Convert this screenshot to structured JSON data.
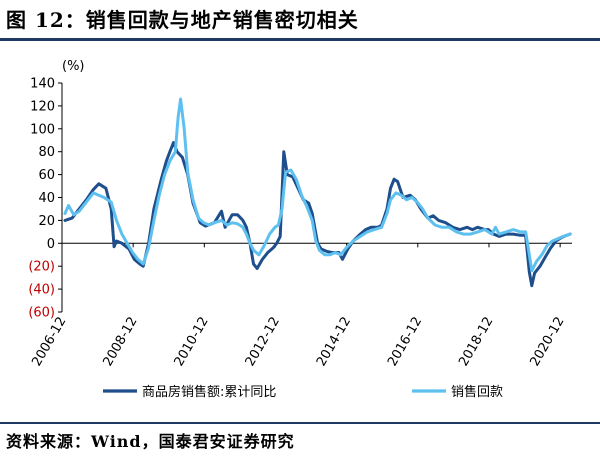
{
  "figure_title": "图 12：销售回款与地产销售密切相关",
  "source_text": "资料来源：Wind，国泰君安证券研究",
  "chart_data": {
    "type": "line",
    "y_unit_label": "(%)",
    "ylim": [
      -60,
      140
    ],
    "y_ticks": [
      {
        "value": 140,
        "label": "140"
      },
      {
        "value": 120,
        "label": "120"
      },
      {
        "value": 100,
        "label": "100"
      },
      {
        "value": 80,
        "label": "80"
      },
      {
        "value": 60,
        "label": "60"
      },
      {
        "value": 40,
        "label": "40"
      },
      {
        "value": 20,
        "label": "20"
      },
      {
        "value": 0,
        "label": "0"
      },
      {
        "value": -20,
        "label": "(20)"
      },
      {
        "value": -40,
        "label": "(40)"
      },
      {
        "value": -60,
        "label": "(60)"
      }
    ],
    "x_tick_labels": [
      "2006-12",
      "2008-12",
      "2010-12",
      "2012-12",
      "2014-12",
      "2016-12",
      "2018-12",
      "2020-12"
    ],
    "xlim": [
      2006.917,
      2021.25
    ],
    "legend_position": "bottom",
    "series": [
      {
        "name": "商品房销售额:累计同比",
        "color": "#1f4e8c",
        "points": [
          [
            2007.0,
            20
          ],
          [
            2007.2,
            22
          ],
          [
            2007.4,
            30
          ],
          [
            2007.6,
            38
          ],
          [
            2007.8,
            47
          ],
          [
            2007.95,
            52
          ],
          [
            2008.15,
            48
          ],
          [
            2008.3,
            30
          ],
          [
            2008.38,
            -3
          ],
          [
            2008.45,
            2
          ],
          [
            2008.6,
            0
          ],
          [
            2008.8,
            -5
          ],
          [
            2008.95,
            -14
          ],
          [
            2009.1,
            -18
          ],
          [
            2009.2,
            -20
          ],
          [
            2009.35,
            0
          ],
          [
            2009.5,
            30
          ],
          [
            2009.7,
            55
          ],
          [
            2009.85,
            72
          ],
          [
            2009.95,
            80
          ],
          [
            2010.05,
            88
          ],
          [
            2010.15,
            80
          ],
          [
            2010.3,
            75
          ],
          [
            2010.45,
            60
          ],
          [
            2010.6,
            35
          ],
          [
            2010.8,
            18
          ],
          [
            2010.95,
            15
          ],
          [
            2011.2,
            18
          ],
          [
            2011.4,
            28
          ],
          [
            2011.5,
            14
          ],
          [
            2011.7,
            25
          ],
          [
            2011.85,
            25
          ],
          [
            2012.0,
            20
          ],
          [
            2012.1,
            14
          ],
          [
            2012.2,
            0
          ],
          [
            2012.3,
            -18
          ],
          [
            2012.4,
            -22
          ],
          [
            2012.55,
            -14
          ],
          [
            2012.7,
            -8
          ],
          [
            2012.85,
            -4
          ],
          [
            2012.95,
            0
          ],
          [
            2013.05,
            6
          ],
          [
            2013.15,
            80
          ],
          [
            2013.25,
            60
          ],
          [
            2013.4,
            58
          ],
          [
            2013.55,
            48
          ],
          [
            2013.7,
            38
          ],
          [
            2013.85,
            35
          ],
          [
            2013.95,
            26
          ],
          [
            2014.1,
            0
          ],
          [
            2014.2,
            -5
          ],
          [
            2014.35,
            -7
          ],
          [
            2014.5,
            -8
          ],
          [
            2014.7,
            -8
          ],
          [
            2014.8,
            -14
          ],
          [
            2014.95,
            -5
          ],
          [
            2015.1,
            2
          ],
          [
            2015.3,
            8
          ],
          [
            2015.45,
            12
          ],
          [
            2015.6,
            14
          ],
          [
            2015.8,
            14
          ],
          [
            2015.9,
            16
          ],
          [
            2016.05,
            30
          ],
          [
            2016.15,
            48
          ],
          [
            2016.25,
            56
          ],
          [
            2016.35,
            54
          ],
          [
            2016.5,
            40
          ],
          [
            2016.7,
            42
          ],
          [
            2016.85,
            38
          ],
          [
            2017.0,
            30
          ],
          [
            2017.2,
            22
          ],
          [
            2017.35,
            24
          ],
          [
            2017.5,
            20
          ],
          [
            2017.7,
            18
          ],
          [
            2017.9,
            14
          ],
          [
            2018.1,
            12
          ],
          [
            2018.3,
            14
          ],
          [
            2018.45,
            12
          ],
          [
            2018.6,
            14
          ],
          [
            2018.8,
            12
          ],
          [
            2018.9,
            12
          ],
          [
            2019.05,
            8
          ],
          [
            2019.2,
            6
          ],
          [
            2019.4,
            8
          ],
          [
            2019.6,
            8
          ],
          [
            2019.8,
            7
          ],
          [
            2019.9,
            7
          ],
          [
            2019.95,
            6
          ],
          [
            2020.05,
            -25
          ],
          [
            2020.12,
            -37
          ],
          [
            2020.2,
            -26
          ],
          [
            2020.35,
            -20
          ],
          [
            2020.5,
            -12
          ],
          [
            2020.65,
            -4
          ],
          [
            2020.8,
            2
          ],
          [
            2020.95,
            5
          ],
          [
            2021.1,
            7
          ],
          [
            2021.2,
            8
          ]
        ]
      },
      {
        "name": "销售回款",
        "color": "#5ec0ef",
        "points": [
          [
            2007.0,
            26
          ],
          [
            2007.1,
            33
          ],
          [
            2007.25,
            25
          ],
          [
            2007.4,
            28
          ],
          [
            2007.6,
            36
          ],
          [
            2007.8,
            44
          ],
          [
            2007.95,
            42
          ],
          [
            2008.1,
            40
          ],
          [
            2008.3,
            36
          ],
          [
            2008.45,
            20
          ],
          [
            2008.6,
            8
          ],
          [
            2008.75,
            0
          ],
          [
            2008.9,
            -8
          ],
          [
            2009.05,
            -14
          ],
          [
            2009.2,
            -18
          ],
          [
            2009.35,
            -4
          ],
          [
            2009.5,
            20
          ],
          [
            2009.65,
            42
          ],
          [
            2009.8,
            60
          ],
          [
            2009.95,
            72
          ],
          [
            2010.1,
            80
          ],
          [
            2010.18,
            110
          ],
          [
            2010.25,
            126
          ],
          [
            2010.35,
            100
          ],
          [
            2010.45,
            62
          ],
          [
            2010.6,
            38
          ],
          [
            2010.75,
            22
          ],
          [
            2010.9,
            18
          ],
          [
            2011.05,
            16
          ],
          [
            2011.2,
            18
          ],
          [
            2011.4,
            20
          ],
          [
            2011.55,
            16
          ],
          [
            2011.7,
            18
          ],
          [
            2011.85,
            17
          ],
          [
            2012.0,
            14
          ],
          [
            2012.1,
            8
          ],
          [
            2012.2,
            0
          ],
          [
            2012.3,
            -6
          ],
          [
            2012.45,
            -10
          ],
          [
            2012.6,
            -2
          ],
          [
            2012.75,
            8
          ],
          [
            2012.9,
            14
          ],
          [
            2013.0,
            16
          ],
          [
            2013.1,
            30
          ],
          [
            2013.2,
            62
          ],
          [
            2013.35,
            64
          ],
          [
            2013.5,
            56
          ],
          [
            2013.65,
            42
          ],
          [
            2013.8,
            32
          ],
          [
            2013.95,
            20
          ],
          [
            2014.05,
            2
          ],
          [
            2014.15,
            -6
          ],
          [
            2014.3,
            -10
          ],
          [
            2014.45,
            -10
          ],
          [
            2014.6,
            -8
          ],
          [
            2014.75,
            -10
          ],
          [
            2014.9,
            -4
          ],
          [
            2015.1,
            2
          ],
          [
            2015.3,
            6
          ],
          [
            2015.5,
            10
          ],
          [
            2015.7,
            12
          ],
          [
            2015.9,
            14
          ],
          [
            2016.05,
            26
          ],
          [
            2016.15,
            38
          ],
          [
            2016.3,
            44
          ],
          [
            2016.45,
            42
          ],
          [
            2016.6,
            38
          ],
          [
            2016.75,
            40
          ],
          [
            2016.9,
            36
          ],
          [
            2017.05,
            30
          ],
          [
            2017.2,
            22
          ],
          [
            2017.4,
            16
          ],
          [
            2017.6,
            14
          ],
          [
            2017.8,
            14
          ],
          [
            2018.0,
            10
          ],
          [
            2018.2,
            8
          ],
          [
            2018.4,
            8
          ],
          [
            2018.6,
            10
          ],
          [
            2018.8,
            12
          ],
          [
            2019.0,
            8
          ],
          [
            2019.1,
            14
          ],
          [
            2019.2,
            8
          ],
          [
            2019.4,
            10
          ],
          [
            2019.6,
            12
          ],
          [
            2019.8,
            10
          ],
          [
            2019.95,
            10
          ],
          [
            2020.05,
            -10
          ],
          [
            2020.12,
            -24
          ],
          [
            2020.25,
            -16
          ],
          [
            2020.4,
            -10
          ],
          [
            2020.55,
            -2
          ],
          [
            2020.7,
            2
          ],
          [
            2020.85,
            4
          ],
          [
            2021.0,
            6
          ],
          [
            2021.2,
            8
          ]
        ]
      }
    ]
  }
}
